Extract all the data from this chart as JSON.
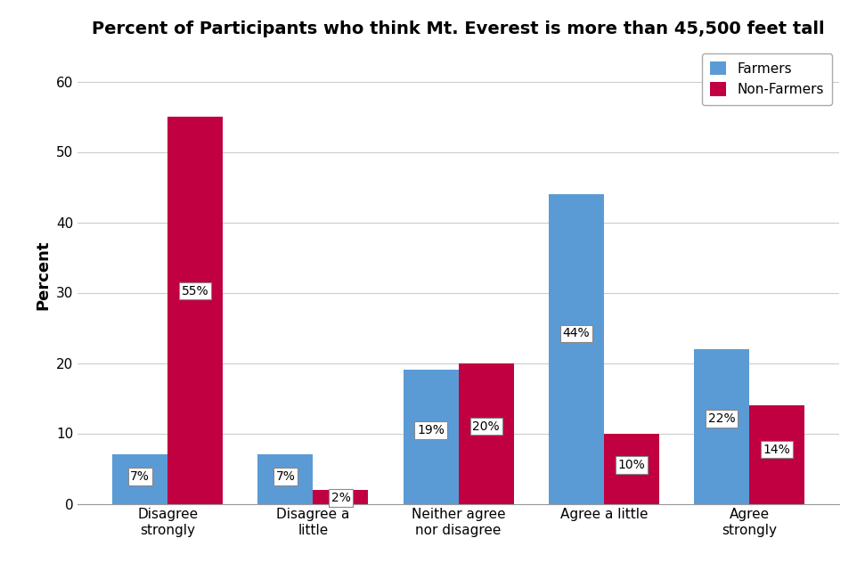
{
  "title": "Percent of Participants who think Mt. Everest is more than 45,500 feet tall",
  "categories": [
    "Disagree\nstrongly",
    "Disagree a\nlittle",
    "Neither agree\nnor disagree",
    "Agree a little",
    "Agree\nstrongly"
  ],
  "farmers": [
    7,
    7,
    19,
    44,
    22
  ],
  "non_farmers": [
    55,
    2,
    20,
    10,
    14
  ],
  "farmer_color": "#5B9BD5",
  "non_farmer_color": "#C00040",
  "ylabel": "Percent",
  "ylim": [
    0,
    65
  ],
  "yticks": [
    0,
    10,
    20,
    30,
    40,
    50,
    60
  ],
  "legend_labels": [
    "Farmers",
    "Non-Farmers"
  ],
  "bar_width": 0.38,
  "title_fontsize": 14,
  "label_fontsize": 11,
  "tick_fontsize": 11,
  "background_color": "#FFFFFF",
  "grid_color": "#CCCCCC"
}
